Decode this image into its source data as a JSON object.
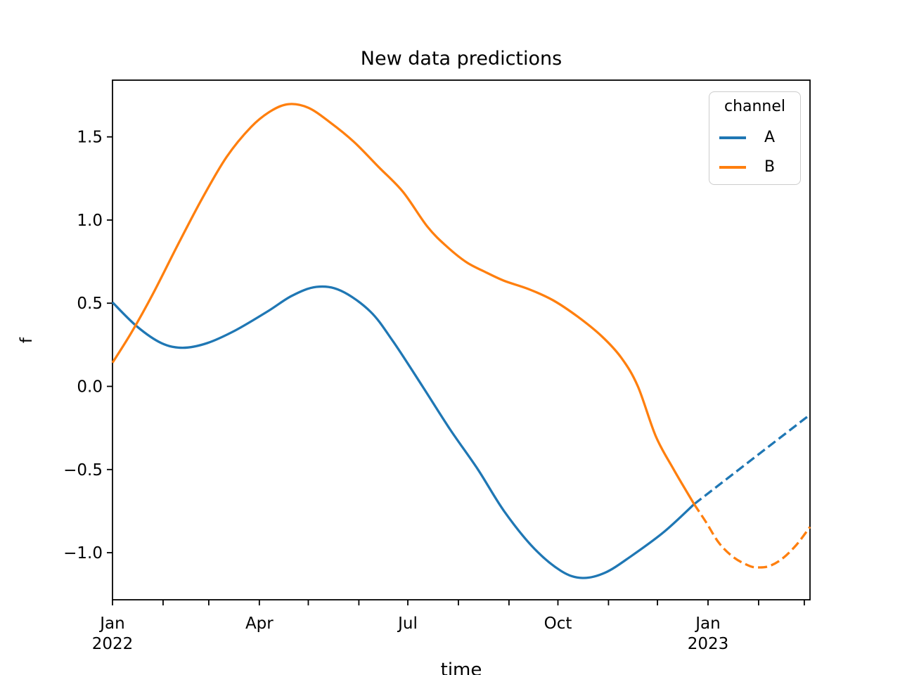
{
  "chart_data": {
    "type": "line",
    "title": "New data predictions",
    "xlabel": "time",
    "ylabel": "f",
    "x_unit": "days since 2022-01-01",
    "x_domain": [
      0,
      427.5
    ],
    "ylim": [
      -1.283,
      1.841
    ],
    "grid": false,
    "legend_position": "upper right",
    "legend": {
      "title": "channel",
      "entries": [
        {
          "label": "A",
          "color": "#1f77b4"
        },
        {
          "label": "B",
          "color": "#ff7f0e"
        }
      ]
    },
    "colors": {
      "A": "#1f77b4",
      "B": "#ff7f0e",
      "spine": "#000000",
      "legend_edge": "#cccccc"
    },
    "y_ticks": [
      {
        "value": 1.5,
        "label": "1.5"
      },
      {
        "value": 1.0,
        "label": "1.0"
      },
      {
        "value": 0.5,
        "label": "0.5"
      },
      {
        "value": 0.0,
        "label": "0.0"
      },
      {
        "value": -0.5,
        "label": "−0.5"
      },
      {
        "value": -1.0,
        "label": "−1.0"
      }
    ],
    "x_ticks": [
      {
        "day": 0,
        "label": "Jan",
        "sub": "2022"
      },
      {
        "day": 31,
        "label": "",
        "sub": ""
      },
      {
        "day": 59,
        "label": "",
        "sub": ""
      },
      {
        "day": 90,
        "label": "Apr",
        "sub": ""
      },
      {
        "day": 120,
        "label": "",
        "sub": ""
      },
      {
        "day": 151,
        "label": "",
        "sub": ""
      },
      {
        "day": 181,
        "label": "Jul",
        "sub": ""
      },
      {
        "day": 212,
        "label": "",
        "sub": ""
      },
      {
        "day": 243,
        "label": "",
        "sub": ""
      },
      {
        "day": 273,
        "label": "Oct",
        "sub": ""
      },
      {
        "day": 304,
        "label": "",
        "sub": ""
      },
      {
        "day": 334,
        "label": "",
        "sub": ""
      },
      {
        "day": 365,
        "label": "Jan",
        "sub": "2023"
      },
      {
        "day": 396,
        "label": "",
        "sub": ""
      },
      {
        "day": 424,
        "label": "",
        "sub": ""
      }
    ],
    "series": [
      {
        "name": "A-observed",
        "channel": "A",
        "color": "#1f77b4",
        "style": "solid",
        "points": [
          [
            0,
            0.505
          ],
          [
            15,
            0.36
          ],
          [
            30,
            0.26
          ],
          [
            43,
            0.232
          ],
          [
            58,
            0.26
          ],
          [
            75,
            0.335
          ],
          [
            95,
            0.45
          ],
          [
            110,
            0.545
          ],
          [
            125,
            0.598
          ],
          [
            140,
            0.575
          ],
          [
            158,
            0.45
          ],
          [
            172,
            0.27
          ],
          [
            190,
            0.0
          ],
          [
            207,
            -0.26
          ],
          [
            224,
            -0.5
          ],
          [
            240,
            -0.75
          ],
          [
            258,
            -0.97
          ],
          [
            275,
            -1.11
          ],
          [
            288,
            -1.152
          ],
          [
            302,
            -1.12
          ],
          [
            318,
            -1.02
          ],
          [
            338,
            -0.875
          ],
          [
            356.5,
            -0.708
          ]
        ]
      },
      {
        "name": "A-forecast",
        "channel": "A",
        "color": "#1f77b4",
        "style": "dashed",
        "points": [
          [
            356.5,
            -0.708
          ],
          [
            427.5,
            -0.17
          ]
        ]
      },
      {
        "name": "B-observed",
        "channel": "B",
        "color": "#ff7f0e",
        "style": "solid",
        "points": [
          [
            0,
            0.142
          ],
          [
            12,
            0.33
          ],
          [
            25,
            0.56
          ],
          [
            40,
            0.85
          ],
          [
            55,
            1.13
          ],
          [
            70,
            1.38
          ],
          [
            85,
            1.56
          ],
          [
            97,
            1.655
          ],
          [
            108,
            1.697
          ],
          [
            120,
            1.675
          ],
          [
            133,
            1.59
          ],
          [
            148,
            1.47
          ],
          [
            163,
            1.32
          ],
          [
            178,
            1.17
          ],
          [
            193,
            0.96
          ],
          [
            205,
            0.84
          ],
          [
            217,
            0.746
          ],
          [
            228,
            0.69
          ],
          [
            240,
            0.635
          ],
          [
            255,
            0.585
          ],
          [
            270,
            0.518
          ],
          [
            285,
            0.42
          ],
          [
            300,
            0.3
          ],
          [
            312,
            0.17
          ],
          [
            322,
            0.0
          ],
          [
            333,
            -0.3
          ],
          [
            344,
            -0.5
          ],
          [
            356.5,
            -0.708
          ]
        ]
      },
      {
        "name": "B-forecast",
        "channel": "B",
        "color": "#ff7f0e",
        "style": "dashed",
        "points": [
          [
            356.5,
            -0.708
          ],
          [
            364,
            -0.82
          ],
          [
            372,
            -0.945
          ],
          [
            381,
            -1.03
          ],
          [
            390,
            -1.078
          ],
          [
            395,
            -1.088
          ],
          [
            402,
            -1.082
          ],
          [
            410,
            -1.04
          ],
          [
            419,
            -0.955
          ],
          [
            427.5,
            -0.845
          ]
        ]
      }
    ]
  }
}
